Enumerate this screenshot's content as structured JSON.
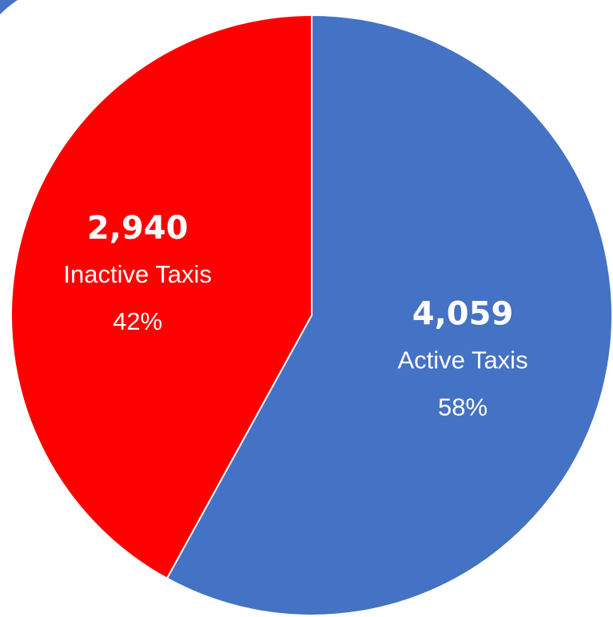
{
  "chart_data": {
    "type": "pie",
    "slices": [
      {
        "label": "Active Taxis",
        "value": 4059,
        "value_text": "4,059",
        "percent_text": "58%",
        "color": "#4472c4"
      },
      {
        "label": "Inactive Taxis",
        "value": 2940,
        "value_text": "2,940",
        "percent_text": "42%",
        "color": "#ff0000"
      }
    ],
    "start_angle_deg": 0,
    "direction": "clockwise",
    "slice_border_color": "#ffffff",
    "legend": "none"
  },
  "decor": {
    "corner_mark_color": "#4472c4"
  }
}
